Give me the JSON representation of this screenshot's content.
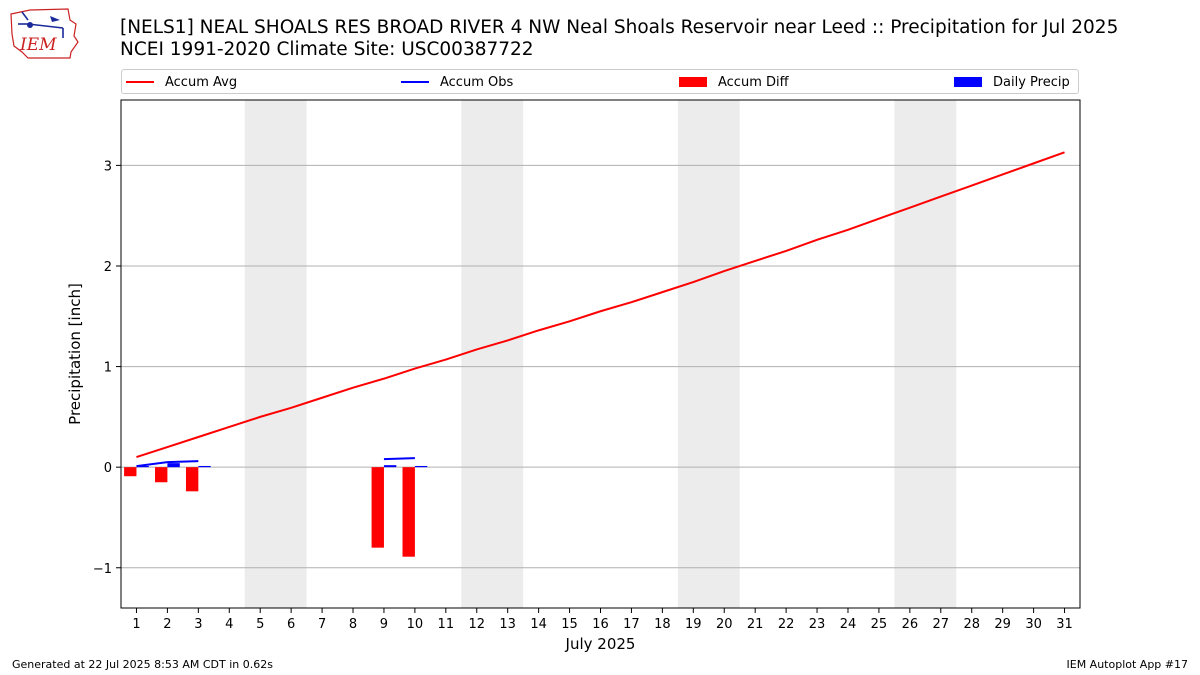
{
  "header": {
    "title_line1": "[NELS1] NEAL SHOALS RES BROAD RIVER 4 NW Neal Shoals Reservoir near Leed :: Precipitation for Jul 2025",
    "title_line2": "NCEI 1991-2020 Climate Site: USC00387722",
    "logo_text": "IEM"
  },
  "legend": {
    "accum_avg": "Accum Avg",
    "accum_obs": "Accum Obs",
    "accum_diff": "Accum Diff",
    "daily_precip": "Daily Precip"
  },
  "colors": {
    "avg": "#ff0000",
    "obs": "#0000ff",
    "diff": "#ff0000",
    "daily": "#0000ff",
    "weekend": "#ececec",
    "grid": "#b0b0b0",
    "logo": "#cc2222"
  },
  "footer": {
    "generated": "Generated at 22 Jul 2025 8:53 AM CDT in 0.62s",
    "app": "IEM Autoplot App #17"
  },
  "chart_data": {
    "type": "bar",
    "xlabel": "July 2025",
    "ylabel": "Precipitation [inch]",
    "xlim": [
      0.5,
      31.5
    ],
    "ylim": [
      -1.4,
      3.65
    ],
    "xticks": [
      "1",
      "2",
      "3",
      "4",
      "5",
      "6",
      "7",
      "8",
      "9",
      "10",
      "11",
      "12",
      "13",
      "14",
      "15",
      "16",
      "17",
      "18",
      "19",
      "20",
      "21",
      "22",
      "23",
      "24",
      "25",
      "26",
      "27",
      "28",
      "29",
      "30",
      "31"
    ],
    "yticks": [
      -1,
      0,
      1,
      2,
      3
    ],
    "ytick_labels": [
      "−1",
      "0",
      "1",
      "2",
      "3"
    ],
    "grid": "y",
    "weekend_bands": [
      [
        4.5,
        6.5
      ],
      [
        11.5,
        13.5
      ],
      [
        18.5,
        20.5
      ],
      [
        25.5,
        27.5
      ]
    ],
    "accum_avg": {
      "days": [
        1,
        2,
        3,
        4,
        5,
        6,
        7,
        8,
        9,
        10,
        11,
        12,
        13,
        14,
        15,
        16,
        17,
        18,
        19,
        20,
        21,
        22,
        23,
        24,
        25,
        26,
        27,
        28,
        29,
        30,
        31
      ],
      "values": [
        0.1,
        0.2,
        0.3,
        0.4,
        0.5,
        0.59,
        0.69,
        0.79,
        0.88,
        0.98,
        1.07,
        1.17,
        1.26,
        1.36,
        1.45,
        1.55,
        1.64,
        1.74,
        1.84,
        1.95,
        2.05,
        2.15,
        2.26,
        2.36,
        2.47,
        2.58,
        2.69,
        2.8,
        2.91,
        3.02,
        3.13
      ]
    },
    "accum_obs": {
      "segments": [
        {
          "days": [
            1,
            2,
            3
          ],
          "values": [
            0.01,
            0.05,
            0.06
          ]
        },
        {
          "days": [
            9,
            10
          ],
          "values": [
            0.08,
            0.09
          ]
        }
      ]
    },
    "accum_diff": {
      "days": [
        1,
        2,
        3,
        9,
        10
      ],
      "values": [
        -0.09,
        -0.15,
        -0.24,
        -0.8,
        -0.89
      ]
    },
    "daily_precip": {
      "days": [
        1,
        2,
        3,
        9,
        10
      ],
      "values": [
        0.01,
        0.04,
        0.01,
        0.02,
        0.01
      ]
    }
  }
}
